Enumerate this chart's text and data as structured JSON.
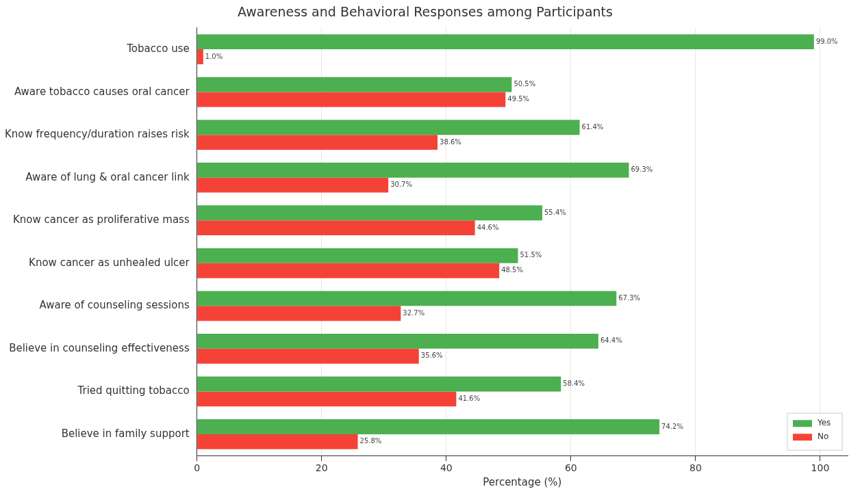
{
  "chart_data": {
    "type": "bar",
    "orientation": "horizontal",
    "title": "Awareness and Behavioral Responses among Participants",
    "xlabel": "Percentage (%)",
    "categories": [
      "Tobacco use",
      "Aware tobacco causes oral cancer",
      "Know frequency/duration raises risk",
      "Aware of lung & oral cancer link",
      "Know cancer as proliferative mass",
      "Know cancer as unhealed ulcer",
      "Aware of counseling sessions",
      "Believe in counseling effectiveness",
      "Tried quitting tobacco",
      "Believe in family support"
    ],
    "series": [
      {
        "name": "Yes",
        "color": "#4caf50",
        "values": [
          99.0,
          50.5,
          61.4,
          69.3,
          55.4,
          51.5,
          67.3,
          64.4,
          58.4,
          74.2
        ],
        "value_labels": [
          "99.0%",
          "50.5%",
          "61.4%",
          "69.3%",
          "55.4%",
          "51.5%",
          "67.3%",
          "64.4%",
          "58.4%",
          "74.2%"
        ]
      },
      {
        "name": "No",
        "color": "#f44336",
        "values": [
          1.0,
          49.5,
          38.6,
          30.7,
          44.6,
          48.5,
          32.7,
          35.6,
          41.6,
          25.8
        ],
        "value_labels": [
          "1.0%",
          "49.5%",
          "38.6%",
          "30.7%",
          "44.6%",
          "48.5%",
          "32.7%",
          "35.6%",
          "41.6%",
          "25.8%"
        ]
      }
    ],
    "xlim": [
      0,
      104.4
    ],
    "xticks": [
      0,
      20,
      40,
      60,
      80,
      100
    ],
    "grid": "x",
    "legend": "bottom right"
  }
}
